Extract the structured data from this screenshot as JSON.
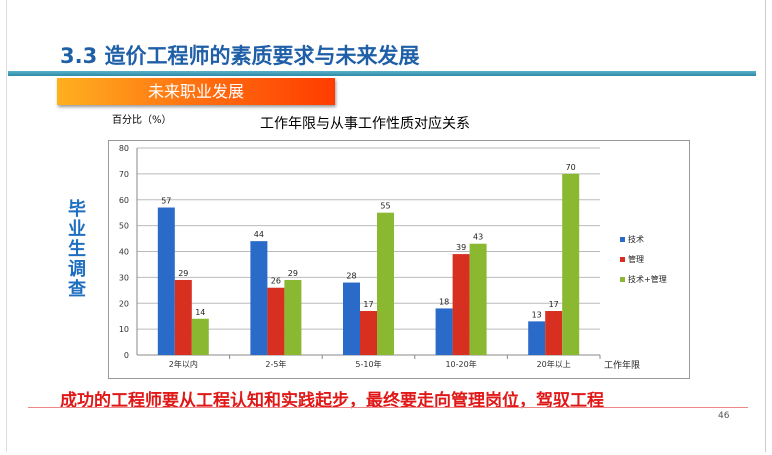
{
  "slide": {
    "title": "3.3  造价工程师的素质要求与未来发展",
    "banner": "未来职业发展",
    "side_label": "毕业生调查",
    "conclusion": "成功的工程师要从工程认知和实践起步，最终要走向管理岗位，驾驭工程",
    "page_number": "46"
  },
  "chart_data": {
    "type": "bar",
    "title": "工作年限与从事工作性质对应关系",
    "ylabel": "百分比（%）",
    "xlabel": "工作年限",
    "ylim": [
      0,
      80
    ],
    "yticks": [
      0,
      10,
      20,
      30,
      40,
      50,
      60,
      70,
      80
    ],
    "grid": true,
    "legend": "right",
    "categories": [
      "2年以内",
      "2-5年",
      "5-10年",
      "10-20年",
      "20年以上"
    ],
    "series": [
      {
        "name": "技术",
        "values": [
          57,
          44,
          28,
          18,
          13
        ],
        "color": "#2a6ac8"
      },
      {
        "name": "管理",
        "values": [
          29,
          26,
          17,
          39,
          17
        ],
        "color": "#d83020"
      },
      {
        "name": "技术+管理",
        "values": [
          14,
          29,
          55,
          43,
          70
        ],
        "color": "#8ab830"
      }
    ]
  }
}
